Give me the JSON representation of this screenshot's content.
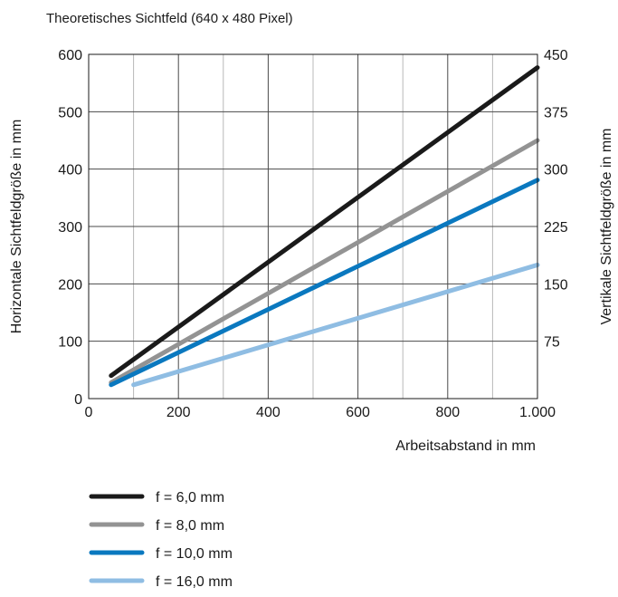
{
  "chart_data": {
    "type": "line",
    "title": "Theoretisches Sichtfeld (640 x 480 Pixel)",
    "xlabel": "Arbeitsabstand in mm",
    "ylabel": "Horizontale Sichtfeldgröße in mm",
    "y2label": "Vertikale Sichtfeldgröße in mm",
    "xlim": [
      0,
      1000
    ],
    "ylim": [
      0,
      600
    ],
    "y2lim": [
      0,
      450
    ],
    "x_ticks": [
      0,
      200,
      400,
      600,
      800,
      1000
    ],
    "x_tick_labels": [
      "0",
      "200",
      "400",
      "600",
      "800",
      "1.000"
    ],
    "y_ticks": [
      0,
      100,
      200,
      300,
      400,
      500,
      600
    ],
    "y_tick_labels": [
      "0",
      "100",
      "200",
      "300",
      "400",
      "500",
      "600"
    ],
    "y2_ticks": [
      75,
      150,
      225,
      300,
      375,
      450
    ],
    "y2_tick_labels": [
      "75",
      "150",
      "225",
      "300",
      "375",
      "450"
    ],
    "grid": true,
    "legend_position": "bottom-left",
    "series": [
      {
        "name": "f = 6,0 mm",
        "color": "#1a1a1a",
        "x": [
          50,
          1000
        ],
        "y": [
          40,
          577
        ]
      },
      {
        "name": "f = 8,0 mm",
        "color": "#939393",
        "x": [
          50,
          1000
        ],
        "y": [
          28,
          450
        ]
      },
      {
        "name": "f = 10,0 mm",
        "color": "#0a78bf",
        "x": [
          50,
          1000
        ],
        "y": [
          24,
          381
        ]
      },
      {
        "name": "f = 16,0 mm",
        "color": "#8fbde3",
        "x": [
          100,
          1000
        ],
        "y": [
          24,
          233
        ]
      }
    ]
  }
}
